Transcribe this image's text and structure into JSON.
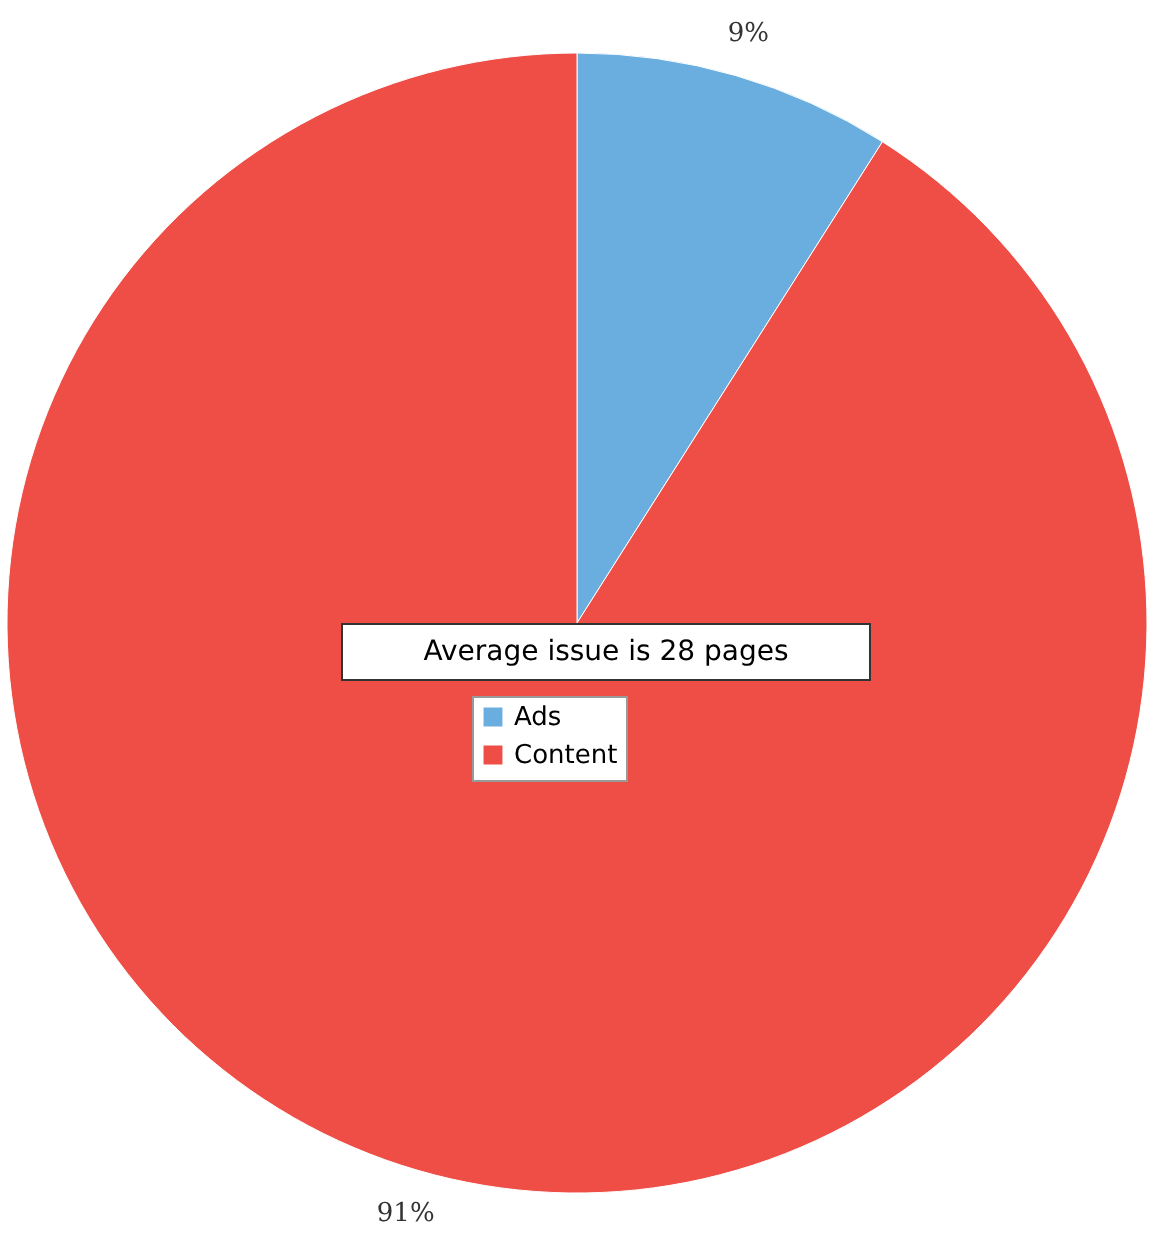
{
  "chart_data": {
    "type": "pie",
    "categories": [
      "Ads",
      "Content"
    ],
    "values": [
      9,
      91
    ],
    "colors": [
      "#6aaee0",
      "#ee4e46"
    ],
    "value_labels": [
      "9%",
      "91%"
    ],
    "annotations": [
      "Average issue is 28 pages"
    ],
    "legend": "center"
  }
}
